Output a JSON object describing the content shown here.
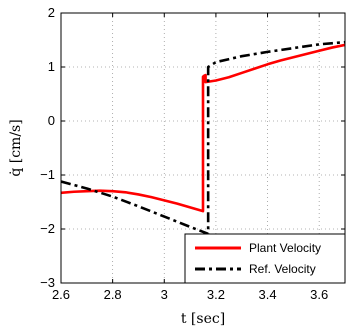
{
  "chart_data": {
    "type": "line",
    "xlabel": "t [sec]",
    "ylabel": "q̇ [cm/s]",
    "xlim": [
      2.6,
      3.7
    ],
    "ylim": [
      -3,
      2
    ],
    "grid": true,
    "legend_position": "bottom-right",
    "x_ticks": [
      "2.6",
      "2.8",
      "3",
      "3.2",
      "3.4",
      "3.6"
    ],
    "y_ticks": [
      "−3",
      "−2",
      "−1",
      "0",
      "1",
      "2"
    ],
    "x_tick_values": [
      2.6,
      2.8,
      3.0,
      3.2,
      3.4,
      3.6
    ],
    "y_tick_values": [
      -3,
      -2,
      -1,
      0,
      1,
      2
    ],
    "series": [
      {
        "name": "Plant Velocity",
        "color": "#ff0000",
        "style": "solid",
        "x": [
          2.6,
          2.65,
          2.7,
          2.75,
          2.8,
          2.85,
          2.9,
          2.95,
          3.0,
          3.05,
          3.1,
          3.15,
          3.15,
          3.155,
          3.16,
          3.16,
          3.2,
          3.25,
          3.3,
          3.35,
          3.4,
          3.45,
          3.5,
          3.55,
          3.6,
          3.65,
          3.7
        ],
        "values": [
          -1.33,
          -1.31,
          -1.3,
          -1.29,
          -1.3,
          -1.32,
          -1.36,
          -1.41,
          -1.47,
          -1.53,
          -1.6,
          -1.67,
          0.82,
          0.84,
          0.85,
          0.72,
          0.75,
          0.81,
          0.89,
          0.97,
          1.05,
          1.12,
          1.18,
          1.24,
          1.3,
          1.36,
          1.41
        ]
      },
      {
        "name": "Ref. Velocity",
        "color": "#000000",
        "style": "dashdot",
        "x": [
          2.6,
          2.7,
          2.8,
          2.9,
          3.0,
          3.1,
          3.17,
          3.17,
          3.2,
          3.3,
          3.4,
          3.5,
          3.6,
          3.7
        ],
        "values": [
          -1.12,
          -1.25,
          -1.4,
          -1.58,
          -1.77,
          -1.96,
          -2.09,
          1.0,
          1.09,
          1.2,
          1.28,
          1.35,
          1.42,
          1.46
        ]
      }
    ]
  }
}
